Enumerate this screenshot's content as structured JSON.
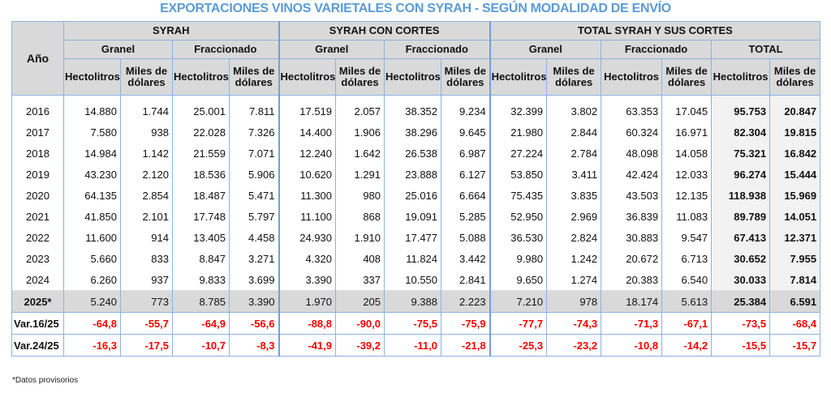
{
  "title": "EXPORTACIONES VINOS VARIETALES CON SYRAH - SEGÚN MODALIDAD DE ENVÍO",
  "header": {
    "year_label": "Año",
    "groups": [
      "SYRAH",
      "SYRAH CON CORTES",
      "TOTAL SYRAH Y SUS CORTES"
    ],
    "subgroups": [
      "Granel",
      "Fraccionado",
      "Granel",
      "Fraccionado",
      "Granel",
      "Fraccionado",
      "TOTAL"
    ],
    "measures": [
      "Hectolitros",
      "Miles de dólares",
      "Hectolitros",
      "Miles de dólares",
      "Hectolitros",
      "Miles de dólares",
      "Hectolitros",
      "Miles de dólares",
      "Hectolitros",
      "Miles de dólares",
      "Hectolitros",
      "Miles de dólares",
      "Hectolitros",
      "Miles de dólares"
    ]
  },
  "rows": [
    {
      "year": "2016",
      "values": [
        "14.880",
        "1.744",
        "25.001",
        "7.811",
        "17.519",
        "2.057",
        "38.352",
        "9.234",
        "32.399",
        "3.802",
        "63.353",
        "17.045",
        "95.753",
        "20.847"
      ]
    },
    {
      "year": "2017",
      "values": [
        "7.580",
        "938",
        "22.028",
        "7.326",
        "14.400",
        "1.906",
        "38.296",
        "9.645",
        "21.980",
        "2.844",
        "60.324",
        "16.971",
        "82.304",
        "19.815"
      ]
    },
    {
      "year": "2018",
      "values": [
        "14.984",
        "1.142",
        "21.559",
        "7.071",
        "12.240",
        "1.642",
        "26.538",
        "6.987",
        "27.224",
        "2.784",
        "48.098",
        "14.058",
        "75.321",
        "16.842"
      ]
    },
    {
      "year": "2019",
      "values": [
        "43.230",
        "2.120",
        "18.536",
        "5.906",
        "10.620",
        "1.291",
        "23.888",
        "6.127",
        "53.850",
        "3.411",
        "42.424",
        "12.033",
        "96.274",
        "15.444"
      ]
    },
    {
      "year": "2020",
      "values": [
        "64.135",
        "2.854",
        "18.487",
        "5.471",
        "11.300",
        "980",
        "25.016",
        "6.664",
        "75.435",
        "3.835",
        "43.503",
        "12.135",
        "118.938",
        "15.969"
      ]
    },
    {
      "year": "2021",
      "values": [
        "41.850",
        "2.101",
        "17.748",
        "5.797",
        "11.100",
        "868",
        "19.091",
        "5.285",
        "52.950",
        "2.969",
        "36.839",
        "11.083",
        "89.789",
        "14.051"
      ]
    },
    {
      "year": "2022",
      "values": [
        "11.600",
        "914",
        "13.405",
        "4.458",
        "24.930",
        "1.910",
        "17.477",
        "5.088",
        "36.530",
        "2.824",
        "30.883",
        "9.547",
        "67.413",
        "12.371"
      ]
    },
    {
      "year": "2023",
      "values": [
        "5.660",
        "833",
        "8.847",
        "3.271",
        "4.320",
        "408",
        "11.824",
        "3.442",
        "9.980",
        "1.242",
        "20.672",
        "6.713",
        "30.652",
        "7.955"
      ]
    },
    {
      "year": "2024",
      "values": [
        "6.260",
        "937",
        "9.833",
        "3.699",
        "3.390",
        "337",
        "10.550",
        "2.841",
        "9.650",
        "1.274",
        "20.383",
        "6.540",
        "30.033",
        "7.814"
      ]
    },
    {
      "year": "2025*",
      "values": [
        "5.240",
        "773",
        "8.785",
        "3.390",
        "1.970",
        "205",
        "9.388",
        "2.223",
        "7.210",
        "978",
        "18.174",
        "5.613",
        "25.384",
        "6.591"
      ]
    }
  ],
  "variations": [
    {
      "label": "Var.16/25",
      "values": [
        "-64,8",
        "-55,7",
        "-64,9",
        "-56,6",
        "-88,8",
        "-90,0",
        "-75,5",
        "-75,9",
        "-77,7",
        "-74,3",
        "-71,3",
        "-67,1",
        "-73,5",
        "-68,4"
      ]
    },
    {
      "label": "Var.24/25",
      "values": [
        "-16,3",
        "-17,5",
        "-10,7",
        "-8,3",
        "-41,9",
        "-39,2",
        "-11,0",
        "-21,8",
        "-25,3",
        "-23,2",
        "-10,8",
        "-14,2",
        "-15,5",
        "-15,7"
      ]
    }
  ],
  "footnote": "*Datos provisorios",
  "colors": {
    "title": "#5b9bd5",
    "negative": "#ff0000",
    "header_bg": "#d9d9d9",
    "border": "#8db3e2"
  }
}
